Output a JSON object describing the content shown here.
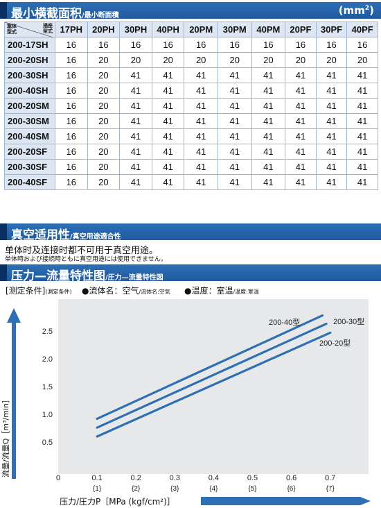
{
  "section1": {
    "title": "最小横截面积",
    "subtitle": "/最小断面積",
    "unit_base": "(mm",
    "unit_sup": "2",
    "unit_close": ")"
  },
  "table": {
    "corner_left": "塞体\n型式",
    "corner_right": "插座\n型式",
    "columns": [
      "17PH",
      "20PH",
      "30PH",
      "40PH",
      "20PM",
      "30PM",
      "40PM",
      "20PF",
      "30PF",
      "40PF"
    ],
    "rows": [
      {
        "name": "200-17SH",
        "values": [
          "16",
          "16",
          "16",
          "16",
          "16",
          "16",
          "16",
          "16",
          "16",
          "16"
        ]
      },
      {
        "name": "200-20SH",
        "values": [
          "16",
          "20",
          "20",
          "20",
          "20",
          "20",
          "20",
          "20",
          "20",
          "20"
        ]
      },
      {
        "name": "200-30SH",
        "values": [
          "16",
          "20",
          "41",
          "41",
          "41",
          "41",
          "41",
          "41",
          "41",
          "41"
        ]
      },
      {
        "name": "200-40SH",
        "values": [
          "16",
          "20",
          "41",
          "41",
          "41",
          "41",
          "41",
          "41",
          "41",
          "41"
        ]
      },
      {
        "name": "200-20SM",
        "values": [
          "16",
          "20",
          "41",
          "41",
          "41",
          "41",
          "41",
          "41",
          "41",
          "41"
        ]
      },
      {
        "name": "200-30SM",
        "values": [
          "16",
          "20",
          "41",
          "41",
          "41",
          "41",
          "41",
          "41",
          "41",
          "41"
        ]
      },
      {
        "name": "200-40SM",
        "values": [
          "16",
          "20",
          "41",
          "41",
          "41",
          "41",
          "41",
          "41",
          "41",
          "41"
        ]
      },
      {
        "name": "200-20SF",
        "values": [
          "16",
          "20",
          "41",
          "41",
          "41",
          "41",
          "41",
          "41",
          "41",
          "41"
        ]
      },
      {
        "name": "200-30SF",
        "values": [
          "16",
          "20",
          "41",
          "41",
          "41",
          "41",
          "41",
          "41",
          "41",
          "41"
        ]
      },
      {
        "name": "200-40SF",
        "values": [
          "16",
          "20",
          "41",
          "41",
          "41",
          "41",
          "41",
          "41",
          "41",
          "41"
        ]
      }
    ]
  },
  "section2": {
    "title": "真空适用性",
    "subtitle": "/真空用途適合性",
    "line1": "单体时及连接时都不可用于真空用途。",
    "line2": "単体時および接続時ともに真空用途には使用できません。"
  },
  "section3": {
    "title": "压力—流量特性图",
    "subtitle": "/圧力—流量特性図",
    "condition": "[测定条件]",
    "condition_jp": "(測定条件)",
    "fluid": "●流体名：空气",
    "fluid_jp": "/流体名:空気",
    "temp": "●温度：室温",
    "temp_jp": "/温度:室温"
  },
  "colors": {
    "header_blue": "#1f5a9e",
    "line_blue": "#2f6fb3",
    "chart_bg": "#e6e8ea"
  },
  "chart_data": {
    "type": "line",
    "xlabel": "压力/圧力P［MPa (kgf/cm²)］",
    "ylabel": "流量/流量Q［m³/min］",
    "x_ticks": [
      "0",
      "0.1",
      "0.2",
      "0.3",
      "0.4",
      "0.5",
      "0.6",
      "0.7"
    ],
    "x_ticks_kgf": [
      "",
      "{1}",
      "{2}",
      "{3}",
      "{4}",
      "{5}",
      "{6}",
      "{7}"
    ],
    "y_ticks": [
      "0.5",
      "1.0",
      "1.5",
      "2.0",
      "2.5"
    ],
    "xlim": [
      0,
      0.7
    ],
    "ylim": [
      0,
      2.8
    ],
    "grid": false,
    "series": [
      {
        "name": "200-40型",
        "x": [
          0.1,
          0.68
        ],
        "y": [
          0.92,
          2.78
        ]
      },
      {
        "name": "200-30型",
        "x": [
          0.1,
          0.69
        ],
        "y": [
          0.76,
          2.63
        ]
      },
      {
        "name": "200-20型",
        "x": [
          0.1,
          0.7
        ],
        "y": [
          0.6,
          2.47
        ]
      }
    ]
  }
}
